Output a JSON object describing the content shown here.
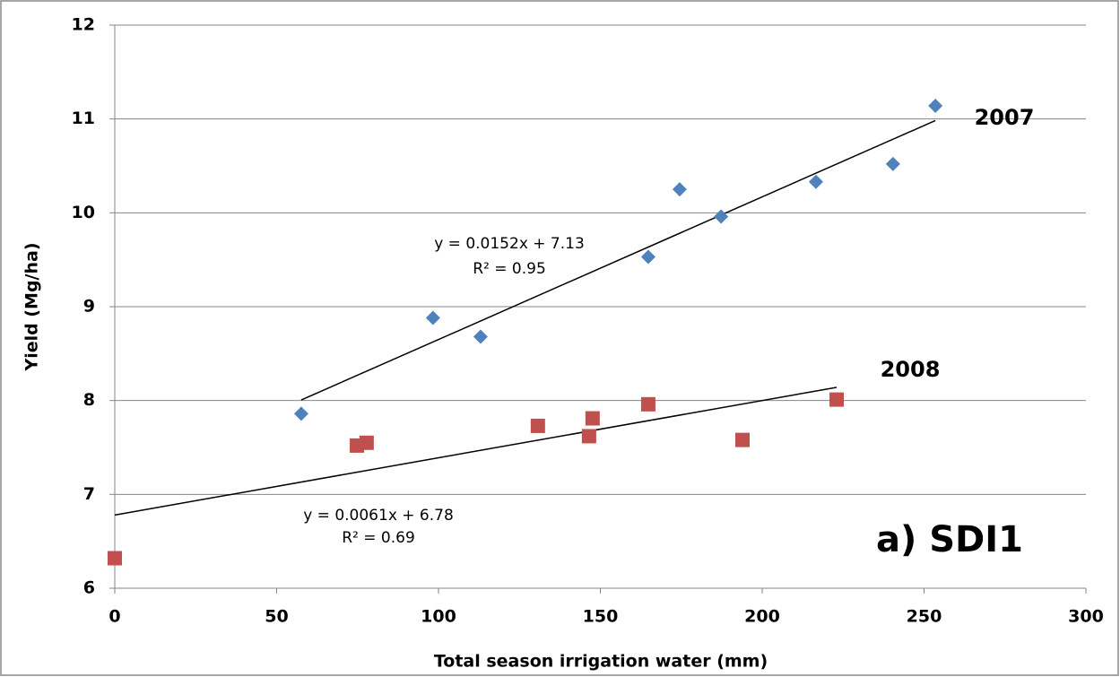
{
  "chart_data": {
    "type": "scatter",
    "x_label": "Total season irrigation water (mm)",
    "y_label": "Yield (Mg/ha)",
    "annotation": "a) SDI1",
    "xlim": [
      0,
      300
    ],
    "xticks": [
      0,
      50,
      100,
      150,
      200,
      250,
      300
    ],
    "ylim": [
      6,
      12
    ],
    "yticks": [
      6,
      7,
      8,
      9,
      10,
      11,
      12
    ],
    "grid": true,
    "series": [
      {
        "name": "2007",
        "color": "#4f81bd",
        "marker": "diamond",
        "x": [
          57.6,
          98.3,
          113,
          164.8,
          174.5,
          187.3,
          216.6,
          240.4,
          253.5
        ],
        "values": [
          7.86,
          8.88,
          8.68,
          9.53,
          10.25,
          9.96,
          10.33,
          10.52,
          11.14
        ],
        "trendline": {
          "slope": 0.0152,
          "intercept": 7.13,
          "equation": "y = 0.0152x + 7.13",
          "r2": "R² = 0.95"
        }
      },
      {
        "name": "2008",
        "color": "#c0504d",
        "marker": "square",
        "x": [
          0,
          74.8,
          77.8,
          130.7,
          146.5,
          147.6,
          164.8,
          193.9,
          223
        ],
        "values": [
          6.32,
          7.52,
          7.55,
          7.73,
          7.62,
          7.81,
          7.96,
          7.58,
          8.01
        ],
        "trendline": {
          "slope": 0.0061,
          "intercept": 6.78,
          "equation": "y = 0.0061x + 6.78",
          "r2": "R² = 0.69"
        }
      }
    ]
  }
}
